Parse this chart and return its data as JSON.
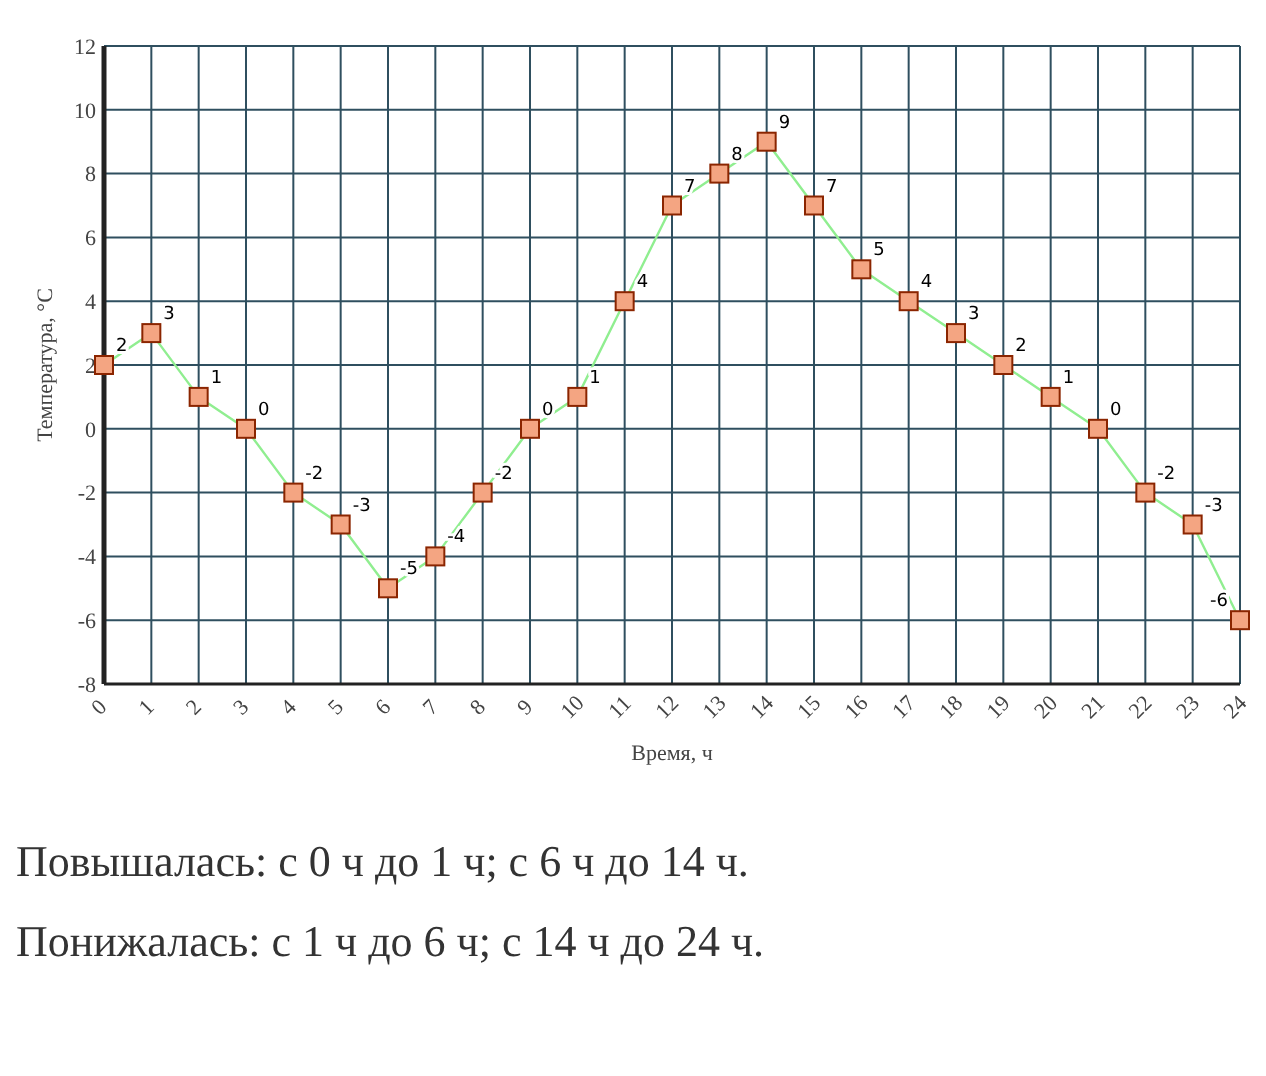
{
  "chart_data": {
    "type": "line",
    "xlabel": "Время, ч",
    "ylabel": "Температура, °C",
    "x": [
      0,
      1,
      2,
      3,
      4,
      5,
      6,
      7,
      8,
      9,
      10,
      11,
      12,
      13,
      14,
      15,
      16,
      17,
      18,
      19,
      20,
      21,
      22,
      23,
      24
    ],
    "series": [
      {
        "color": "#90ee90",
        "values": [
          2,
          3,
          1,
          0,
          -2,
          -3,
          -5,
          -4,
          -2,
          0,
          1,
          4,
          7,
          8,
          9,
          7,
          5,
          4,
          3,
          2,
          1,
          0,
          -2,
          -3,
          -6
        ]
      }
    ],
    "xlim": [
      0,
      24
    ],
    "xticks": [
      0,
      1,
      2,
      3,
      4,
      5,
      6,
      7,
      8,
      9,
      10,
      11,
      12,
      13,
      14,
      15,
      16,
      17,
      18,
      19,
      20,
      21,
      22,
      23,
      24
    ],
    "ylim": [
      -8,
      12
    ],
    "yticks": [
      -8,
      -6,
      -4,
      -2,
      0,
      2,
      4,
      6,
      8,
      10,
      12
    ],
    "grid": true,
    "marker": "square",
    "data_labels": true,
    "annotations": [
      "Повышалась: с 0 ч до 1 ч; с 6 ч до 14 ч.",
      "Понижалась: с 1 ч до 6 ч; с 14 ч до 24 ч."
    ]
  }
}
